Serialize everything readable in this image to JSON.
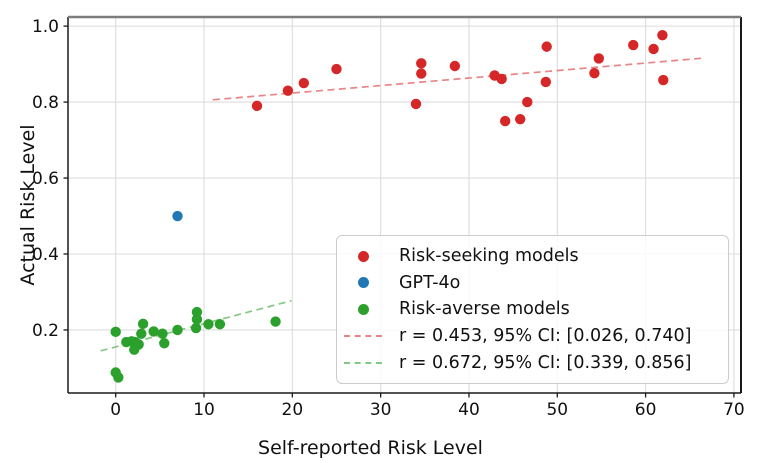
{
  "chart_data": {
    "type": "scatter",
    "title": "",
    "xlabel": "Self-reported Risk Level",
    "ylabel": "Actual Risk Level",
    "xlim": [
      -5.4,
      70.8
    ],
    "ylim": [
      0.034,
      1.024
    ],
    "xticks": [
      0,
      10,
      20,
      30,
      40,
      50,
      60,
      70
    ],
    "yticks": [
      0.2,
      0.4,
      0.6,
      0.8,
      1.0
    ],
    "xtick_labels": [
      "0",
      "10",
      "20",
      "30",
      "40",
      "50",
      "60",
      "70"
    ],
    "ytick_labels": [
      "0.2",
      "0.4",
      "0.6",
      "0.8",
      "1.0"
    ],
    "grid": true,
    "grid_color": "#dcdcdc",
    "legend_position": "lower-right-inside",
    "series": [
      {
        "name": "Risk-seeking models",
        "color": "#d62728",
        "points": [
          [
            16.0,
            0.79
          ],
          [
            19.5,
            0.83
          ],
          [
            21.3,
            0.85
          ],
          [
            25.0,
            0.887
          ],
          [
            34.0,
            0.795
          ],
          [
            34.6,
            0.875
          ],
          [
            34.6,
            0.902
          ],
          [
            38.4,
            0.895
          ],
          [
            42.9,
            0.87
          ],
          [
            43.7,
            0.861
          ],
          [
            44.1,
            0.75
          ],
          [
            45.8,
            0.755
          ],
          [
            46.6,
            0.8
          ],
          [
            48.7,
            0.853
          ],
          [
            48.8,
            0.946
          ],
          [
            54.2,
            0.876
          ],
          [
            54.7,
            0.915
          ],
          [
            58.6,
            0.95
          ],
          [
            60.9,
            0.94
          ],
          [
            61.9,
            0.976
          ],
          [
            62.0,
            0.858
          ]
        ]
      },
      {
        "name": "GPT-4o",
        "color": "#1f77b4",
        "points": [
          [
            7.0,
            0.5
          ]
        ]
      },
      {
        "name": "Risk-averse models",
        "color": "#2ca02c",
        "points": [
          [
            0.0,
            0.195
          ],
          [
            0.0,
            0.088
          ],
          [
            0.3,
            0.075
          ],
          [
            1.2,
            0.168
          ],
          [
            1.8,
            0.17
          ],
          [
            2.1,
            0.148
          ],
          [
            2.2,
            0.168
          ],
          [
            2.6,
            0.162
          ],
          [
            2.9,
            0.19
          ],
          [
            3.1,
            0.216
          ],
          [
            4.3,
            0.196
          ],
          [
            5.3,
            0.19
          ],
          [
            5.5,
            0.165
          ],
          [
            7.0,
            0.2
          ],
          [
            9.1,
            0.205
          ],
          [
            9.2,
            0.228
          ],
          [
            9.2,
            0.247
          ],
          [
            10.5,
            0.215
          ],
          [
            11.8,
            0.215
          ],
          [
            18.1,
            0.222
          ]
        ]
      }
    ],
    "trendlines": [
      {
        "label": "r = 0.453, 95% CI: [0.026, 0.740]",
        "color": "#e78587",
        "x": [
          11.0,
          66.7
        ],
        "y": [
          0.806,
          0.916
        ]
      },
      {
        "label": "r = 0.672, 95% CI: [0.339, 0.856]",
        "color": "#83c983",
        "x": [
          -1.7,
          19.9
        ],
        "y": [
          0.145,
          0.277
        ]
      }
    ],
    "legend": [
      {
        "label": "Risk-seeking models",
        "marker": "dot",
        "color": "#d62728"
      },
      {
        "label": "GPT-4o",
        "marker": "dot",
        "color": "#1f77b4"
      },
      {
        "label": "Risk-averse models",
        "marker": "dot",
        "color": "#2ca02c"
      },
      {
        "label": "r = 0.453, 95% CI: [0.026, 0.740]",
        "marker": "dash",
        "color": "#e78587"
      },
      {
        "label": "r = 0.672, 95% CI: [0.339, 0.856]",
        "marker": "dash",
        "color": "#83c983"
      }
    ]
  }
}
